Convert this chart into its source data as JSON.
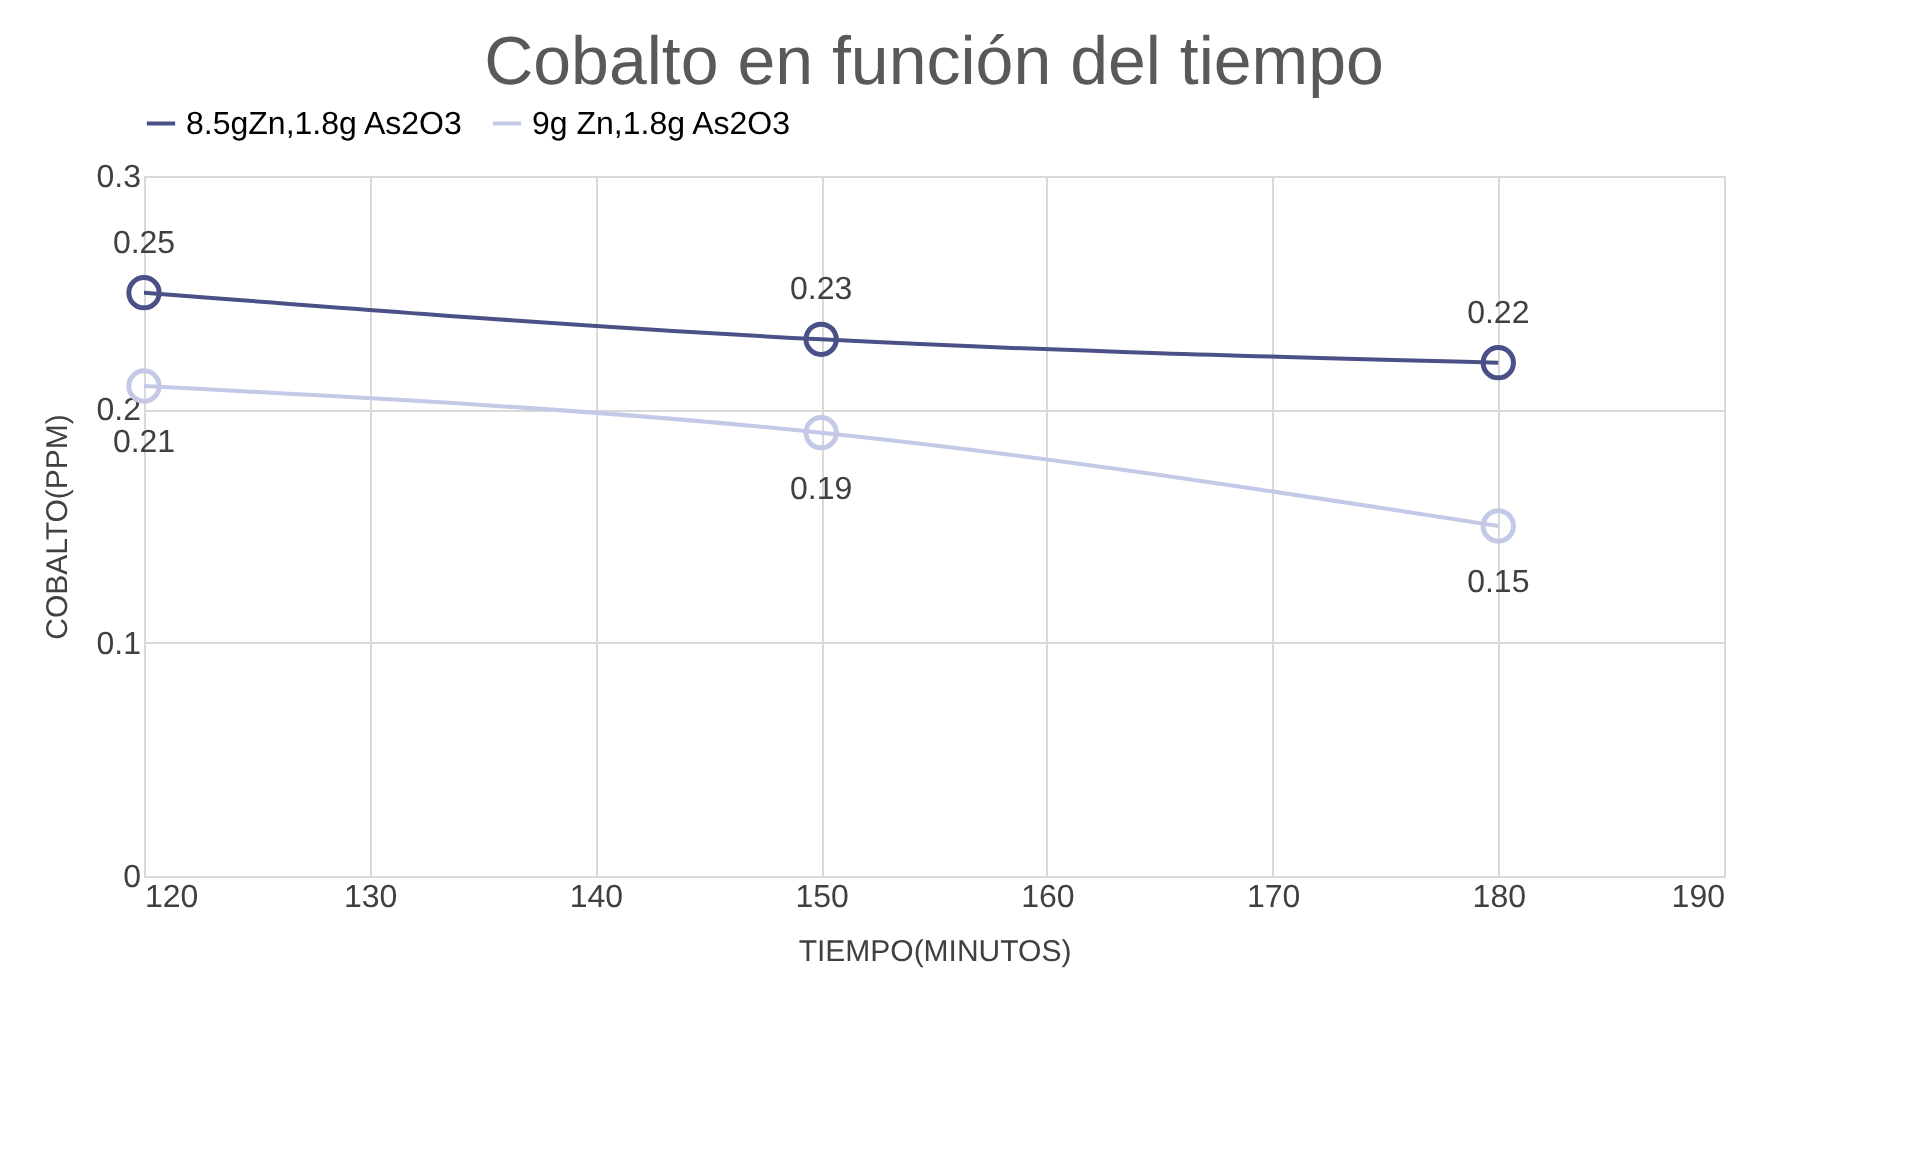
{
  "chart_data": {
    "type": "line",
    "title": "Cobalto en función del tiempo",
    "xlabel": "TIEMPO(MINUTOS)",
    "ylabel": "COBALTO(PPM)",
    "x": [
      120,
      150,
      180
    ],
    "series": [
      {
        "name": "8.5gZn,1.8g As2O3",
        "color": "#4a5186",
        "values": [
          0.25,
          0.23,
          0.22
        ]
      },
      {
        "name": "9g Zn,1.8g As2O3",
        "color": "#c3c9e6",
        "values": [
          0.21,
          0.19,
          0.15
        ]
      }
    ],
    "xlim": [
      120,
      190
    ],
    "xticks": [
      120,
      130,
      140,
      150,
      160,
      170,
      180,
      190
    ],
    "ylim": [
      0,
      0.3
    ],
    "yticks": [
      0,
      0.1,
      0.2,
      0.3
    ],
    "grid": true,
    "legend": "top",
    "marker": "circle",
    "line_style": "solid",
    "data_labels": true
  }
}
